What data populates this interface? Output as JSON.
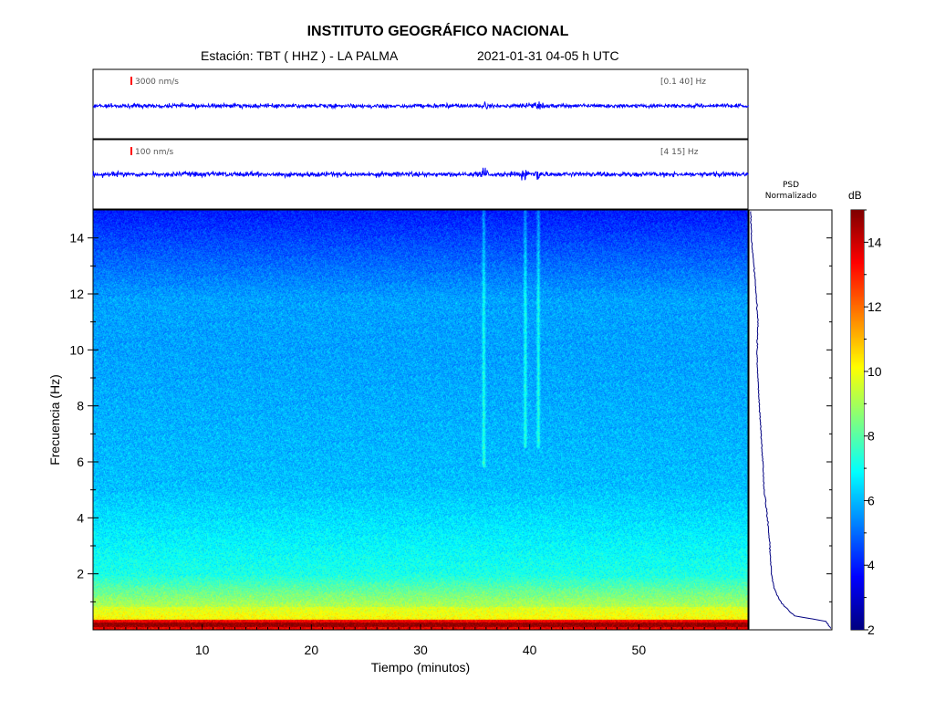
{
  "header": {
    "title": "INSTITUTO GEOGRÁFICO NACIONAL",
    "station": "Estación:  TBT ( HHZ ) - LA PALMA",
    "datetime": "2021-01-31  04-05 h UTC"
  },
  "traces": [
    {
      "scale_label": "3000 nm/s",
      "band_label": "[0.1 40]  Hz",
      "color": "#0000ff",
      "scale_color": "#ff0000"
    },
    {
      "scale_label": "100 nm/s",
      "band_label": "[4 15]  Hz",
      "color": "#0000ff",
      "scale_color": "#ff0000"
    }
  ],
  "psd": {
    "title_line1": "PSD",
    "title_line2": "Normalizado",
    "color": "#000080"
  },
  "colorbar": {
    "unit": "dB",
    "ticks": [
      "2",
      "4",
      "6",
      "8",
      "10",
      "12",
      "14"
    ],
    "range": [
      2,
      15
    ]
  },
  "chart_data": {
    "type": "heatmap",
    "title": "INSTITUTO GEOGRÁFICO NACIONAL",
    "xlabel": "Tiempo (minutos)",
    "ylabel": "Frecuencia (Hz)",
    "xlim": [
      0,
      60
    ],
    "ylim": [
      0,
      15
    ],
    "xticks": [
      "10",
      "20",
      "30",
      "40",
      "50"
    ],
    "yticks": [
      "2",
      "4",
      "6",
      "8",
      "10",
      "12",
      "14"
    ],
    "transient_events_minutes": [
      35.8,
      39.6,
      40.8
    ],
    "psd_profile": {
      "frequency_hz": [
        0.1,
        0.3,
        0.5,
        1,
        1.5,
        2,
        3,
        4,
        5,
        6,
        7,
        8,
        9,
        10,
        11,
        12,
        13,
        14,
        15
      ],
      "normalized": [
        1.0,
        0.95,
        0.55,
        0.38,
        0.3,
        0.27,
        0.25,
        0.22,
        0.18,
        0.16,
        0.14,
        0.12,
        0.1,
        0.09,
        0.1,
        0.08,
        0.05,
        0.02,
        0.01
      ]
    }
  }
}
